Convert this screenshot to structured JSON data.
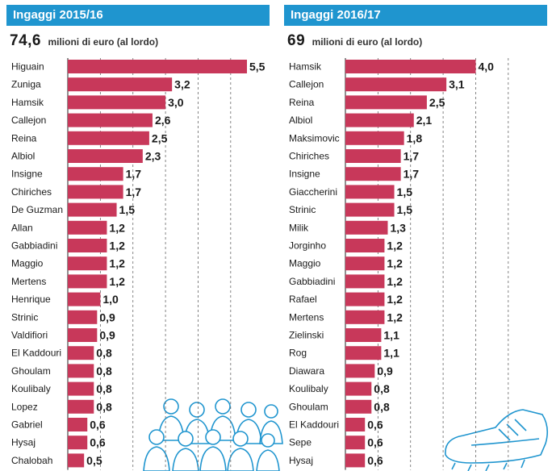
{
  "panels": [
    {
      "title": "Ingaggi 2015/16",
      "total_value": "74,6",
      "total_unit": "milioni di euro (al lordo)"
    },
    {
      "title": "Ingaggi 2016/17",
      "total_value": "69",
      "total_unit": "milioni di euro (al lordo)"
    }
  ],
  "colors": {
    "header": "#1f95cf",
    "bar": "#c8385a"
  },
  "decor": {
    "left_icon": "players-group-icon",
    "right_icon": "football-boot-icon"
  },
  "chart_data": [
    {
      "type": "bar",
      "orientation": "horizontal",
      "title": "Ingaggi 2015/16",
      "xlim": [
        0,
        5.5
      ],
      "grid": true,
      "categories": [
        "Higuain",
        "Zuniga",
        "Hamsik",
        "Callejon",
        "Reina",
        "Albiol",
        "Insigne",
        "Chiriches",
        "De Guzman",
        "Allan",
        "Gabbiadini",
        "Maggio",
        "Mertens",
        "Henrique",
        "Strinic",
        "Valdifiori",
        "El Kaddouri",
        "Ghoulam",
        "Koulibaly",
        "Lopez",
        "Gabriel",
        "Hysaj",
        "Chalobah"
      ],
      "values": [
        5.5,
        3.2,
        3.0,
        2.6,
        2.5,
        2.3,
        1.7,
        1.7,
        1.5,
        1.2,
        1.2,
        1.2,
        1.2,
        1.0,
        0.9,
        0.9,
        0.8,
        0.8,
        0.8,
        0.8,
        0.6,
        0.6,
        0.5
      ],
      "labels": [
        "5,5",
        "3,2",
        "3,0",
        "2,6",
        "2,5",
        "2,3",
        "1,7",
        "1,7",
        "1,5",
        "1,2",
        "1,2",
        "1,2",
        "1,2",
        "1,0",
        "0,9",
        "0,9",
        "0,8",
        "0,8",
        "0,8",
        "0,8",
        "0,6",
        "0,6",
        "0,5"
      ]
    },
    {
      "type": "bar",
      "orientation": "horizontal",
      "title": "Ingaggi 2016/17",
      "xlim": [
        0,
        5.5
      ],
      "grid": true,
      "categories": [
        "Hamsik",
        "Callejon",
        "Reina",
        "Albiol",
        "Maksimovic",
        "Chiriches",
        "Insigne",
        "Giaccherini",
        "Strinic",
        "Milik",
        "Jorginho",
        "Maggio",
        "Gabbiadini",
        "Rafael",
        "Mertens",
        "Zielinski",
        "Rog",
        "Diawara",
        "Koulibaly",
        "Ghoulam",
        "El Kaddouri",
        "Sepe",
        "Hysaj"
      ],
      "values": [
        4.0,
        3.1,
        2.5,
        2.1,
        1.8,
        1.7,
        1.7,
        1.5,
        1.5,
        1.3,
        1.2,
        1.2,
        1.2,
        1.2,
        1.2,
        1.1,
        1.1,
        0.9,
        0.8,
        0.8,
        0.6,
        0.6,
        0.6
      ],
      "labels": [
        "4,0",
        "3,1",
        "2,5",
        "2,1",
        "1,8",
        "1,7",
        "1,7",
        "1,5",
        "1,5",
        "1,3",
        "1,2",
        "1,2",
        "1,2",
        "1,2",
        "1,2",
        "1,1",
        "1,1",
        "0,9",
        "0,8",
        "0,8",
        "0,6",
        "0,6",
        "0,6"
      ]
    }
  ]
}
